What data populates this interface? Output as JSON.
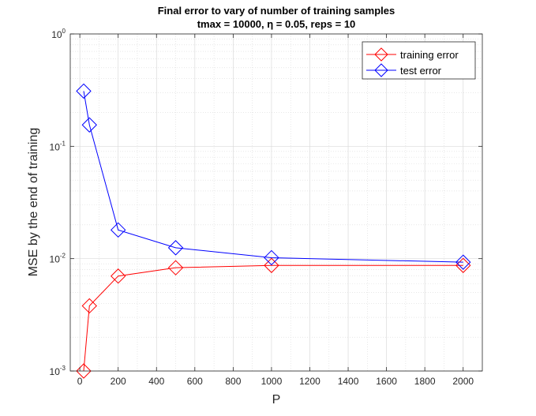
{
  "chart_data": {
    "type": "line",
    "title": "Final error to vary of number of training samples",
    "subtitle": "tmax = 10000, η = 0.05, reps = 10",
    "xlabel": "P",
    "ylabel": "MSE by the end of training",
    "xlim": [
      -50,
      2100
    ],
    "ylim": [
      0.001,
      1
    ],
    "yscale": "log",
    "grid": true,
    "minor_grid": true,
    "legend_position": "top-right",
    "xticks": [
      0,
      200,
      400,
      600,
      800,
      1000,
      1200,
      1400,
      1600,
      1800,
      2000
    ],
    "yticks": [
      {
        "base": "10",
        "exp": "-3"
      },
      {
        "base": "10",
        "exp": "-2"
      },
      {
        "base": "10",
        "exp": "-1"
      },
      {
        "base": "10",
        "exp": "0"
      }
    ],
    "x": [
      20,
      50,
      200,
      500,
      1000,
      2000
    ],
    "series": [
      {
        "name": "training error",
        "color": "#ff0000",
        "marker": "diamond",
        "values": [
          0.001,
          0.0038,
          0.007,
          0.0083,
          0.0087,
          0.0087
        ]
      },
      {
        "name": "test error",
        "color": "#0000ff",
        "marker": "diamond",
        "values": [
          0.31,
          0.155,
          0.018,
          0.0125,
          0.0102,
          0.0093
        ]
      }
    ]
  }
}
